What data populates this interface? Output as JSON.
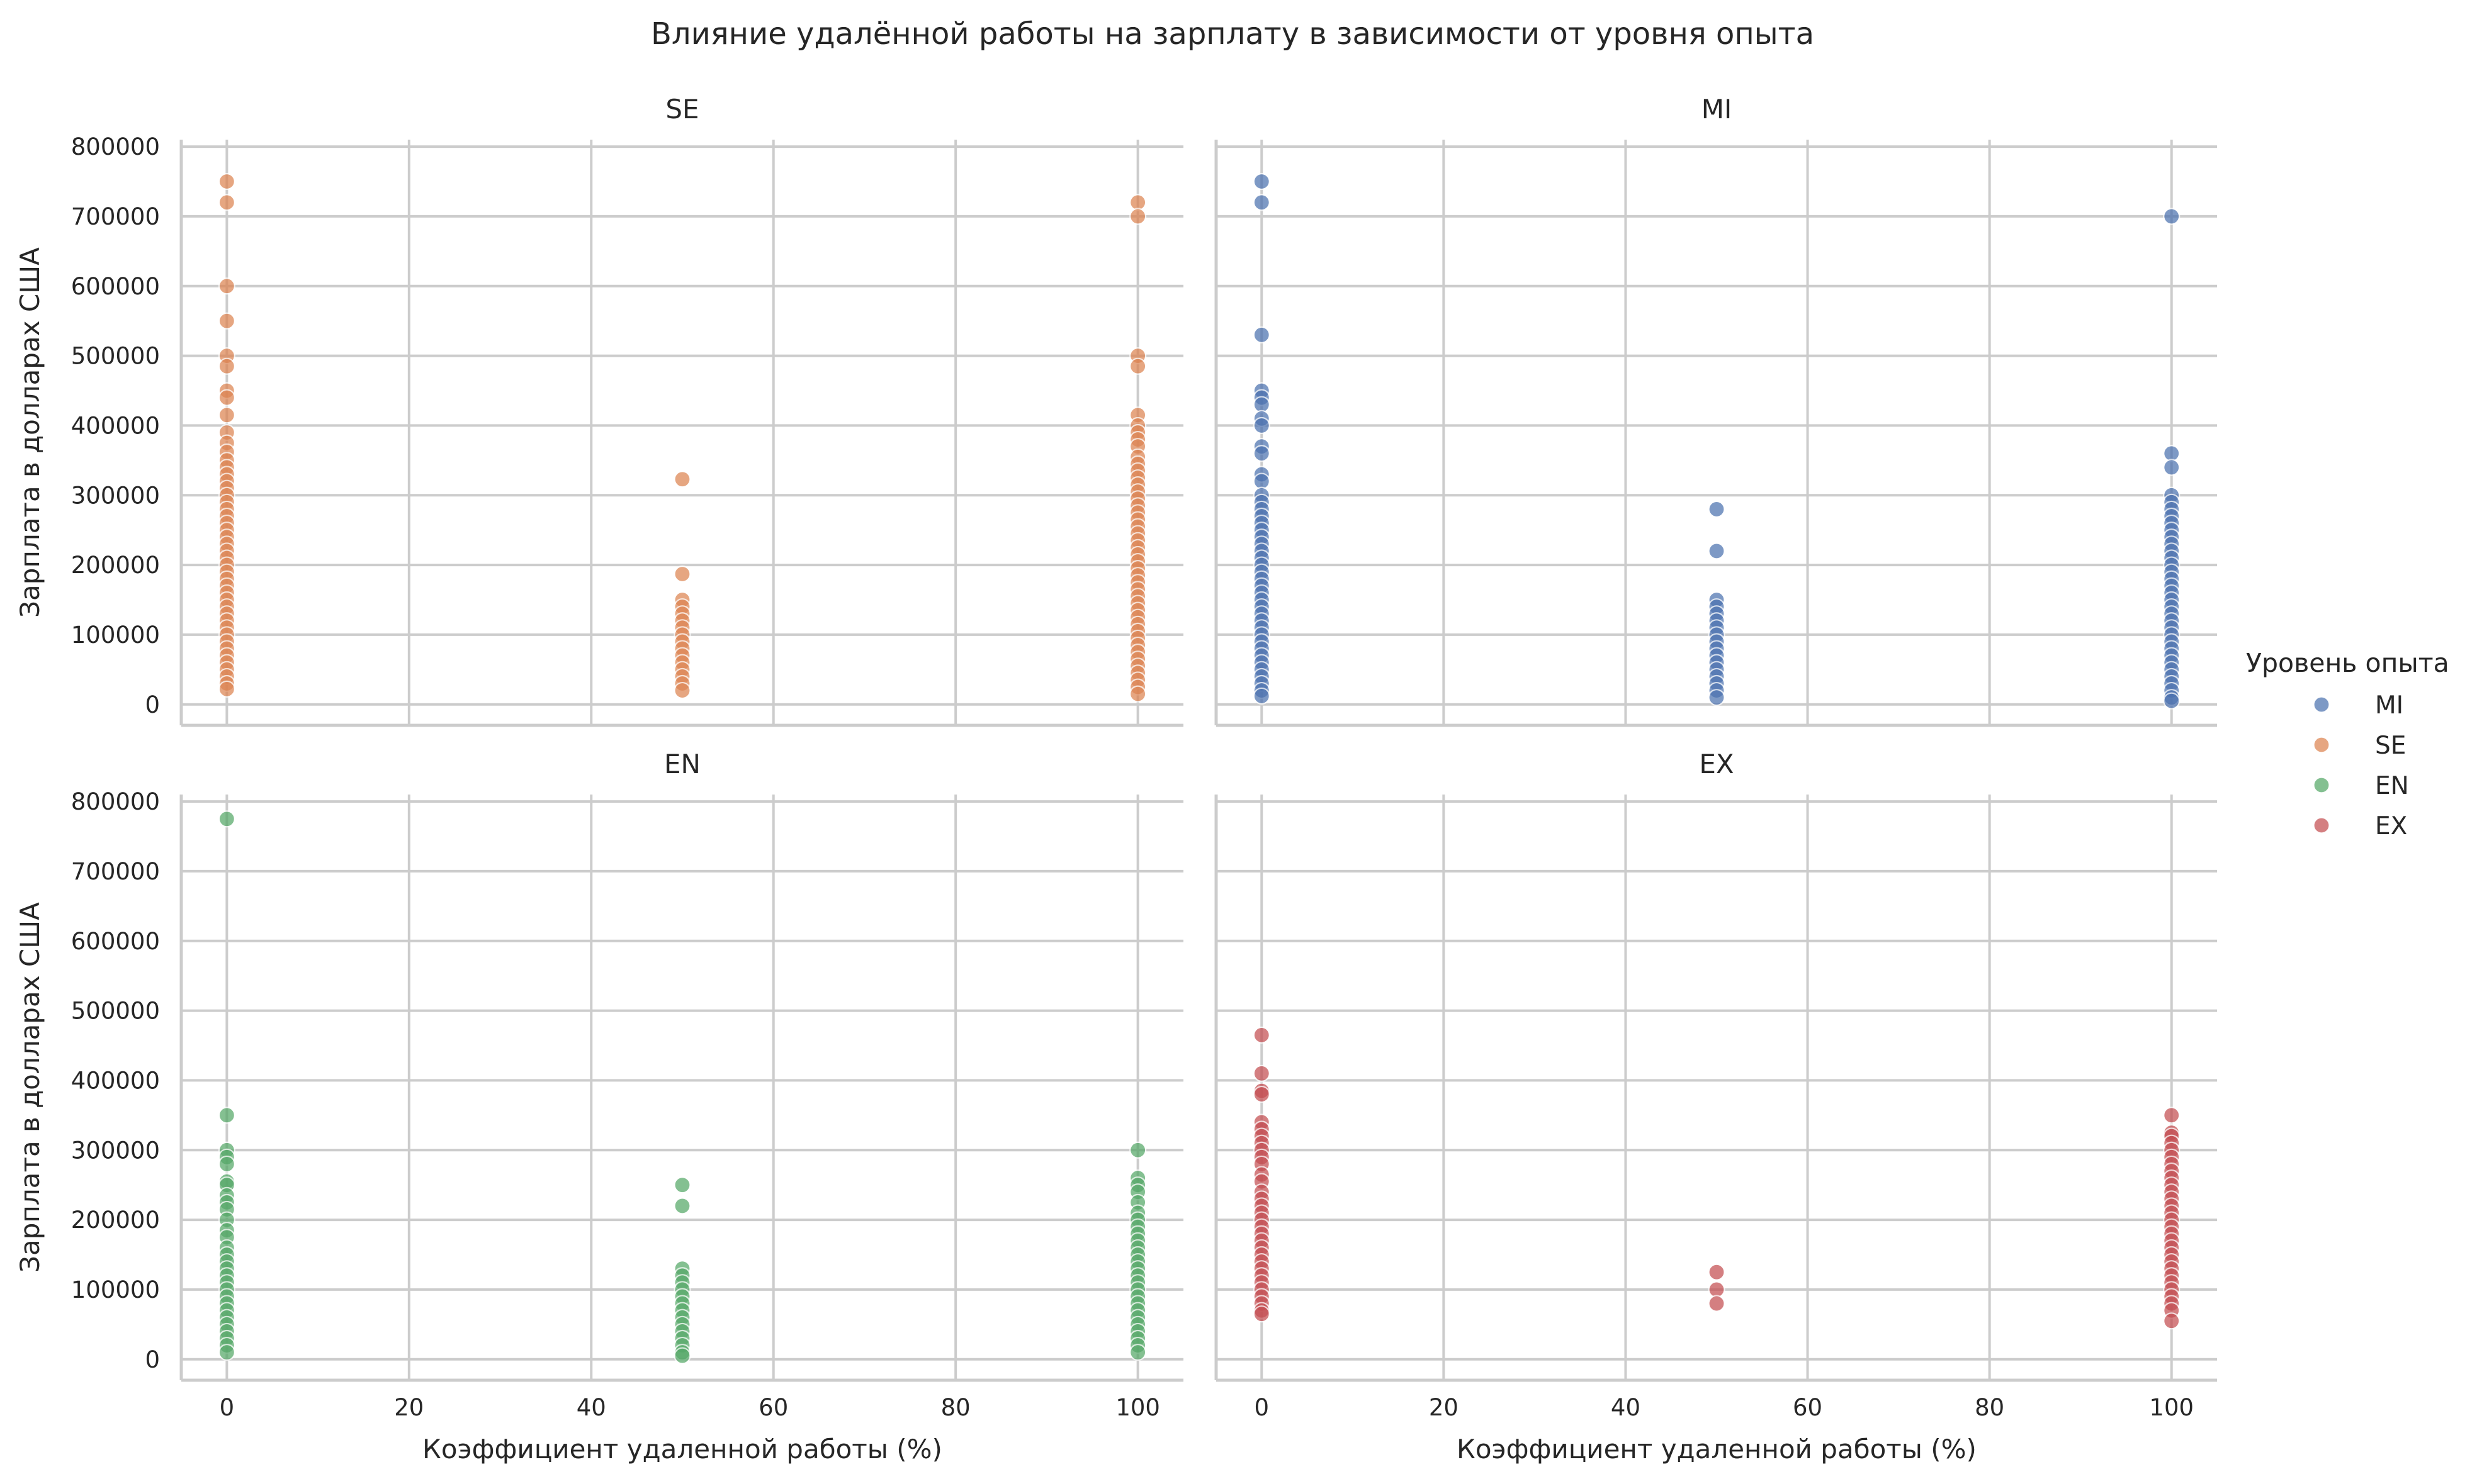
{
  "chart_data": {
    "type": "scatter",
    "title": "Влияние удалённой работы на зарплату в зависимости от уровня опыта",
    "xlabel": "Коэффициент удаленной работы (%)",
    "ylabel": "Зарплата в долларах США",
    "xlim": [
      -5,
      105
    ],
    "ylim": [
      -30000,
      810000
    ],
    "xticks": [
      0,
      20,
      40,
      60,
      80,
      100
    ],
    "yticks": [
      0,
      100000,
      200000,
      300000,
      400000,
      500000,
      600000,
      700000,
      800000
    ],
    "grid": true,
    "legend": {
      "title": "Уровень опыта",
      "placement": "right",
      "entries": [
        {
          "label": "MI",
          "color": "#4c72b0"
        },
        {
          "label": "SE",
          "color": "#dd8452"
        },
        {
          "label": "EN",
          "color": "#55a868"
        },
        {
          "label": "EX",
          "color": "#c44e52"
        }
      ]
    },
    "panels": [
      {
        "title": "SE",
        "color": "#dd8452",
        "points": [
          {
            "x": 0,
            "ys": [
              750000,
              720000,
              600000,
              550000,
              500000,
              485000,
              450000,
              440000,
              415000,
              390000,
              375000,
              362000,
              350000,
              340000,
              330000,
              320000,
              310000,
              300000,
              290000,
              280000,
              270000,
              260000,
              250000,
              240000,
              230000,
              220000,
              210000,
              200000,
              190000,
              180000,
              170000,
              160000,
              150000,
              140000,
              130000,
              120000,
              110000,
              100000,
              90000,
              80000,
              70000,
              60000,
              50000,
              40000,
              30000,
              22000
            ]
          },
          {
            "x": 50,
            "ys": [
              323000,
              187000,
              150000,
              140000,
              130000,
              120000,
              110000,
              100000,
              90000,
              80000,
              70000,
              60000,
              50000,
              40000,
              30000,
              20000
            ]
          },
          {
            "x": 100,
            "ys": [
              720000,
              700000,
              500000,
              485000,
              415000,
              400000,
              390000,
              380000,
              370000,
              355000,
              345000,
              335000,
              325000,
              315000,
              305000,
              295000,
              285000,
              275000,
              265000,
              255000,
              245000,
              235000,
              225000,
              215000,
              205000,
              195000,
              185000,
              175000,
              165000,
              155000,
              145000,
              135000,
              125000,
              115000,
              105000,
              95000,
              85000,
              75000,
              65000,
              55000,
              45000,
              35000,
              25000,
              15000
            ]
          }
        ]
      },
      {
        "title": "MI",
        "color": "#4c72b0",
        "points": [
          {
            "x": 0,
            "ys": [
              750000,
              720000,
              530000,
              450000,
              440000,
              430000,
              410000,
              400000,
              370000,
              360000,
              330000,
              320000,
              300000,
              290000,
              280000,
              270000,
              260000,
              250000,
              240000,
              230000,
              220000,
              210000,
              200000,
              190000,
              180000,
              170000,
              160000,
              150000,
              140000,
              130000,
              120000,
              110000,
              100000,
              90000,
              80000,
              70000,
              60000,
              50000,
              40000,
              30000,
              20000,
              12000
            ]
          },
          {
            "x": 50,
            "ys": [
              280000,
              220000,
              150000,
              140000,
              130000,
              120000,
              110000,
              100000,
              90000,
              80000,
              70000,
              60000,
              50000,
              40000,
              30000,
              20000,
              10000
            ]
          },
          {
            "x": 100,
            "ys": [
              700000,
              360000,
              340000,
              300000,
              290000,
              280000,
              270000,
              260000,
              250000,
              240000,
              230000,
              220000,
              210000,
              200000,
              190000,
              180000,
              170000,
              160000,
              150000,
              140000,
              130000,
              120000,
              110000,
              100000,
              90000,
              80000,
              70000,
              60000,
              50000,
              40000,
              30000,
              20000,
              10000,
              5000
            ]
          }
        ]
      },
      {
        "title": "EN",
        "color": "#55a868",
        "points": [
          {
            "x": 0,
            "ys": [
              775000,
              350000,
              300000,
              290000,
              280000,
              255000,
              250000,
              235000,
              225000,
              215000,
              200000,
              185000,
              175000,
              160000,
              150000,
              140000,
              130000,
              120000,
              110000,
              100000,
              90000,
              80000,
              70000,
              60000,
              50000,
              40000,
              30000,
              20000,
              10000
            ]
          },
          {
            "x": 50,
            "ys": [
              250000,
              220000,
              130000,
              120000,
              110000,
              100000,
              90000,
              80000,
              70000,
              60000,
              50000,
              40000,
              30000,
              20000,
              10000,
              5000
            ]
          },
          {
            "x": 100,
            "ys": [
              300000,
              260000,
              250000,
              240000,
              225000,
              210000,
              200000,
              190000,
              180000,
              170000,
              160000,
              150000,
              140000,
              130000,
              120000,
              110000,
              100000,
              90000,
              80000,
              70000,
              60000,
              50000,
              40000,
              30000,
              20000,
              10000
            ]
          }
        ]
      },
      {
        "title": "EX",
        "color": "#c44e52",
        "points": [
          {
            "x": 0,
            "ys": [
              465000,
              410000,
              385000,
              380000,
              340000,
              330000,
              320000,
              310000,
              300000,
              290000,
              280000,
              265000,
              255000,
              240000,
              230000,
              220000,
              210000,
              200000,
              190000,
              180000,
              170000,
              160000,
              150000,
              140000,
              130000,
              120000,
              110000,
              100000,
              90000,
              80000,
              70000,
              65000
            ]
          },
          {
            "x": 50,
            "ys": [
              125000,
              100000,
              80000
            ]
          },
          {
            "x": 100,
            "ys": [
              350000,
              325000,
              320000,
              310000,
              300000,
              290000,
              280000,
              270000,
              260000,
              250000,
              240000,
              230000,
              220000,
              210000,
              200000,
              190000,
              180000,
              170000,
              160000,
              150000,
              140000,
              130000,
              120000,
              110000,
              100000,
              90000,
              80000,
              70000,
              55000
            ]
          }
        ]
      }
    ]
  }
}
